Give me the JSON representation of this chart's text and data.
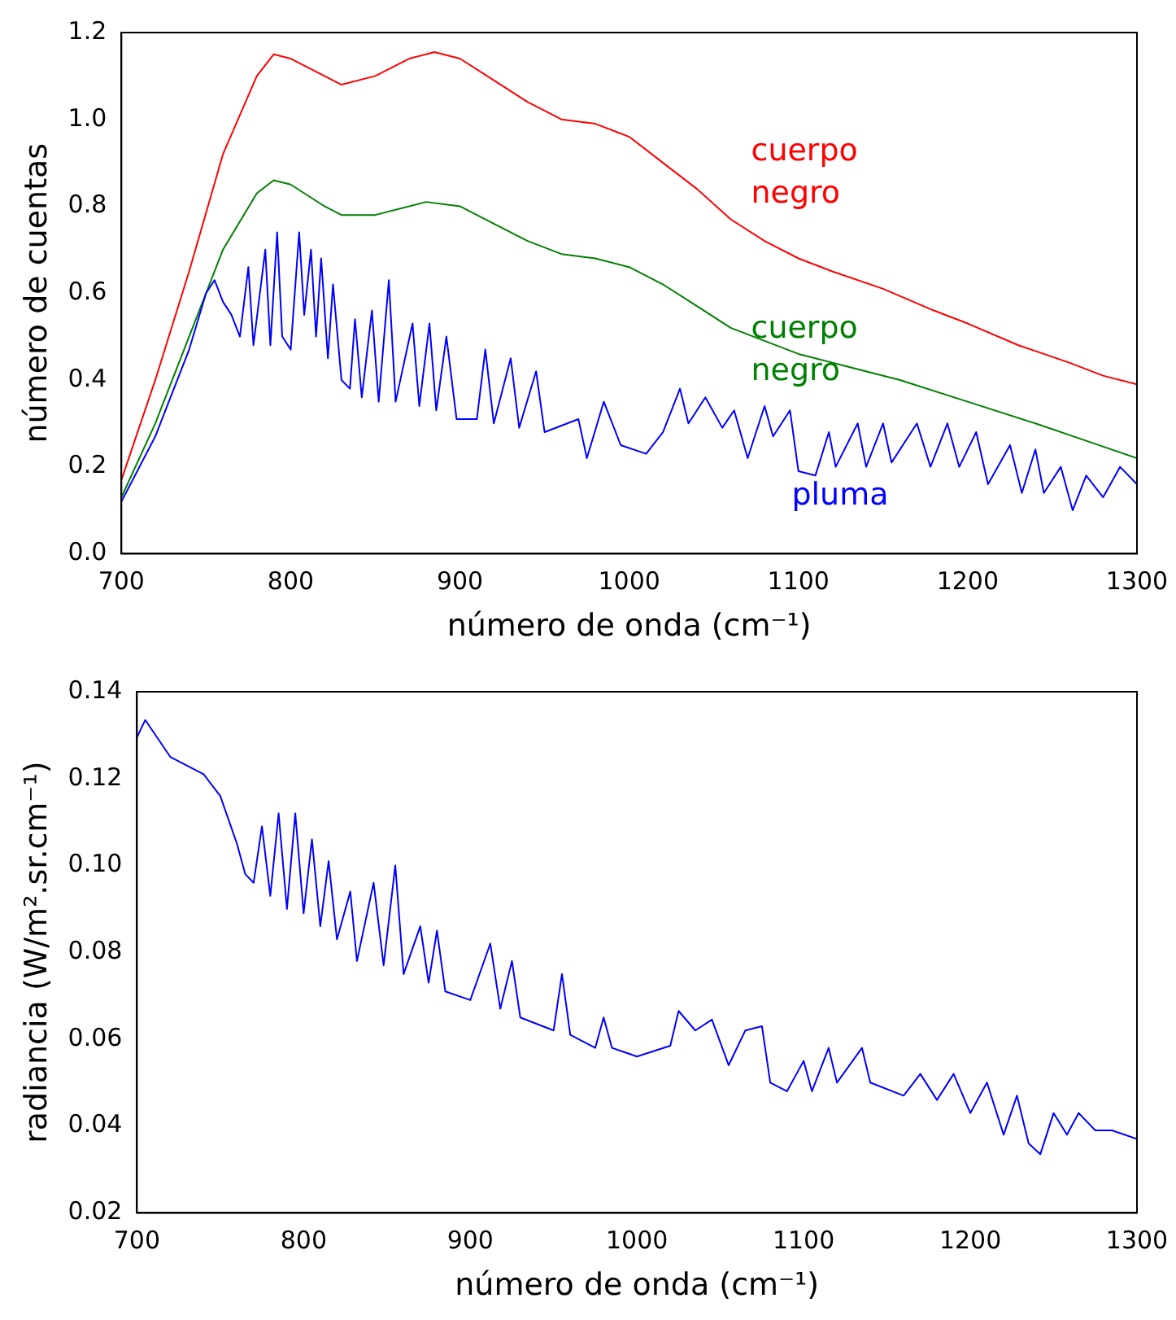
{
  "chart_data": [
    {
      "type": "line",
      "xlabel": "número de onda (cm⁻¹)",
      "ylabel": "número de cuentas",
      "xlim": [
        700,
        1300
      ],
      "xticks": [
        700,
        800,
        900,
        1000,
        1100,
        1200,
        1300
      ],
      "ylim": [
        0,
        1.2
      ],
      "yticks": [
        {
          "value": 0,
          "label": "0.0"
        },
        0.2,
        0.4,
        0.6,
        0.8,
        {
          "value": 1,
          "label": "1.0"
        },
        1.2
      ],
      "grid": false,
      "legend": false,
      "marker": "none",
      "series": [
        {
          "name": "cuerpo negro",
          "color": "#ff0000",
          "x": [
            700,
            720,
            740,
            760,
            780,
            790,
            800,
            820,
            830,
            850,
            870,
            885,
            900,
            920,
            940,
            960,
            980,
            1000,
            1020,
            1040,
            1060,
            1080,
            1100,
            1120,
            1150,
            1180,
            1200,
            1230,
            1260,
            1280,
            1300
          ],
          "values": [
            0.17,
            0.4,
            0.65,
            0.92,
            1.1,
            1.15,
            1.14,
            1.1,
            1.08,
            1.1,
            1.14,
            1.155,
            1.14,
            1.09,
            1.04,
            1.0,
            0.99,
            0.96,
            0.9,
            0.84,
            0.77,
            0.72,
            0.68,
            0.65,
            0.61,
            0.56,
            0.53,
            0.48,
            0.44,
            0.41,
            0.39
          ]
        },
        {
          "name": "cuerpo negro",
          "color": "#008000",
          "x": [
            700,
            720,
            740,
            760,
            780,
            790,
            800,
            820,
            830,
            850,
            880,
            900,
            920,
            940,
            960,
            980,
            1000,
            1020,
            1040,
            1060,
            1080,
            1100,
            1130,
            1160,
            1200,
            1240,
            1270,
            1300
          ],
          "values": [
            0.13,
            0.3,
            0.5,
            0.7,
            0.83,
            0.86,
            0.85,
            0.8,
            0.78,
            0.78,
            0.81,
            0.8,
            0.76,
            0.72,
            0.69,
            0.68,
            0.66,
            0.62,
            0.57,
            0.52,
            0.49,
            0.46,
            0.43,
            0.4,
            0.35,
            0.3,
            0.26,
            0.22
          ]
        },
        {
          "name": "pluma",
          "color": "#0000ff",
          "x": [
            700,
            720,
            740,
            750,
            755,
            760,
            765,
            770,
            775,
            778,
            785,
            788,
            792,
            795,
            800,
            805,
            808,
            812,
            815,
            818,
            822,
            825,
            830,
            835,
            838,
            842,
            848,
            852,
            858,
            862,
            872,
            876,
            882,
            886,
            892,
            898,
            910,
            915,
            920,
            930,
            935,
            945,
            950,
            970,
            975,
            985,
            995,
            1010,
            1020,
            1030,
            1035,
            1045,
            1055,
            1062,
            1070,
            1080,
            1085,
            1095,
            1100,
            1110,
            1118,
            1122,
            1135,
            1140,
            1150,
            1155,
            1170,
            1178,
            1188,
            1195,
            1205,
            1212,
            1225,
            1232,
            1240,
            1245,
            1255,
            1262,
            1270,
            1280,
            1290,
            1300
          ],
          "values": [
            0.12,
            0.27,
            0.47,
            0.6,
            0.63,
            0.58,
            0.55,
            0.5,
            0.66,
            0.48,
            0.7,
            0.48,
            0.74,
            0.5,
            0.47,
            0.74,
            0.55,
            0.7,
            0.5,
            0.68,
            0.45,
            0.62,
            0.4,
            0.38,
            0.54,
            0.36,
            0.56,
            0.35,
            0.63,
            0.35,
            0.53,
            0.34,
            0.53,
            0.33,
            0.5,
            0.31,
            0.31,
            0.47,
            0.3,
            0.45,
            0.29,
            0.42,
            0.28,
            0.31,
            0.22,
            0.35,
            0.25,
            0.23,
            0.28,
            0.38,
            0.3,
            0.36,
            0.29,
            0.33,
            0.22,
            0.34,
            0.27,
            0.33,
            0.19,
            0.18,
            0.28,
            0.2,
            0.3,
            0.2,
            0.3,
            0.21,
            0.3,
            0.2,
            0.3,
            0.2,
            0.28,
            0.16,
            0.25,
            0.14,
            0.24,
            0.14,
            0.2,
            0.1,
            0.18,
            0.13,
            0.2,
            0.16
          ]
        }
      ]
    },
    {
      "type": "line",
      "xlabel": "número de onda (cm⁻¹)",
      "ylabel": "radiancia (W/m².sr.cm⁻¹)",
      "xlim": [
        700,
        1300
      ],
      "xticks": [
        700,
        800,
        900,
        1000,
        1100,
        1200,
        1300
      ],
      "ylim": [
        0.02,
        0.14
      ],
      "yticks": [
        0.02,
        0.04,
        0.06,
        0.08,
        {
          "value": 0.1,
          "label": "0.10"
        },
        0.12,
        0.14
      ],
      "grid": false,
      "legend": false,
      "marker": "none",
      "series": [
        {
          "color": "#0000ff",
          "x": [
            700,
            705,
            720,
            740,
            750,
            760,
            765,
            770,
            775,
            780,
            785,
            790,
            795,
            800,
            805,
            810,
            815,
            820,
            828,
            832,
            842,
            848,
            855,
            860,
            870,
            875,
            880,
            885,
            900,
            912,
            918,
            925,
            930,
            950,
            955,
            960,
            975,
            980,
            985,
            1000,
            1020,
            1025,
            1035,
            1045,
            1055,
            1065,
            1075,
            1080,
            1090,
            1100,
            1105,
            1115,
            1120,
            1135,
            1140,
            1160,
            1170,
            1180,
            1190,
            1200,
            1210,
            1220,
            1228,
            1235,
            1242,
            1250,
            1258,
            1265,
            1275,
            1285,
            1300
          ],
          "values": [
            0.1295,
            0.1335,
            0.125,
            0.121,
            0.116,
            0.105,
            0.098,
            0.096,
            0.109,
            0.093,
            0.112,
            0.09,
            0.112,
            0.089,
            0.106,
            0.086,
            0.101,
            0.083,
            0.094,
            0.078,
            0.096,
            0.077,
            0.1,
            0.075,
            0.086,
            0.073,
            0.085,
            0.071,
            0.069,
            0.082,
            0.067,
            0.078,
            0.065,
            0.062,
            0.075,
            0.061,
            0.058,
            0.065,
            0.058,
            0.056,
            0.0585,
            0.0665,
            0.062,
            0.0645,
            0.054,
            0.062,
            0.063,
            0.05,
            0.048,
            0.055,
            0.048,
            0.058,
            0.05,
            0.058,
            0.05,
            0.047,
            0.052,
            0.046,
            0.052,
            0.043,
            0.05,
            0.038,
            0.047,
            0.036,
            0.0335,
            0.043,
            0.038,
            0.043,
            0.039,
            0.039,
            0.037
          ]
        }
      ]
    }
  ]
}
